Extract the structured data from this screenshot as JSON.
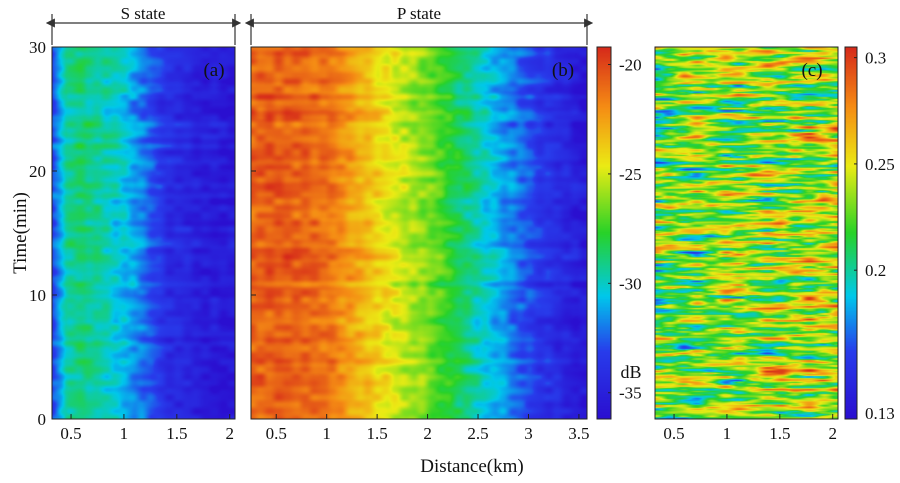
{
  "figure": {
    "ylabel": "Time(min)",
    "xlabel": "Distance(km)"
  },
  "chart_data": [
    {
      "type": "heatmap",
      "panel_label": "(a)",
      "header": "S state",
      "x_ticks": [
        "0.5",
        "1",
        "1.5",
        "2"
      ],
      "y_ticks": [
        "0",
        "10",
        "20",
        "30"
      ],
      "xlim": [
        0.32,
        2.05
      ],
      "ylim": [
        0,
        30
      ],
      "colorbar": "b",
      "colors": {
        "low": "#2a0fd0",
        "high": "#d42a1a"
      },
      "profile_db": [
        {
          "x": 0.32,
          "v": -33
        },
        {
          "x": 0.45,
          "v": -29.5
        },
        {
          "x": 0.62,
          "v": -28.8
        },
        {
          "x": 0.85,
          "v": -29.8
        },
        {
          "x": 1.0,
          "v": -30.5
        },
        {
          "x": 1.2,
          "v": -32.2
        },
        {
          "x": 1.4,
          "v": -34
        },
        {
          "x": 1.7,
          "v": -35
        },
        {
          "x": 2.05,
          "v": -35.5
        }
      ]
    },
    {
      "type": "heatmap",
      "panel_label": "(b)",
      "header": "P state",
      "x_ticks": [
        "0.5",
        "1",
        "1.5",
        "2",
        "2.5",
        "3",
        "3.5"
      ],
      "y_ticks": [
        "0",
        "10",
        "20",
        "30"
      ],
      "xlim": [
        0.25,
        3.58
      ],
      "ylim": [
        0,
        30
      ],
      "colorbar": {
        "ticks": [
          "-20",
          "-25",
          "-30",
          "-35"
        ],
        "range": [
          -36.2,
          -19.2
        ],
        "unit": "dB"
      },
      "profile_db": [
        {
          "x": 0.25,
          "v": -20.8
        },
        {
          "x": 0.6,
          "v": -20.6
        },
        {
          "x": 1.0,
          "v": -21.2
        },
        {
          "x": 1.3,
          "v": -22.8
        },
        {
          "x": 1.6,
          "v": -24.5
        },
        {
          "x": 2.0,
          "v": -26.5
        },
        {
          "x": 2.3,
          "v": -28.5
        },
        {
          "x": 2.6,
          "v": -30.5
        },
        {
          "x": 3.0,
          "v": -33
        },
        {
          "x": 3.3,
          "v": -34.5
        },
        {
          "x": 3.58,
          "v": -35.5
        }
      ]
    },
    {
      "type": "heatmap",
      "panel_label": "(c)",
      "header": "",
      "x_ticks": [
        "0.5",
        "1",
        "1.5",
        "2"
      ],
      "y_ticks": [
        "0",
        "10",
        "20",
        "30"
      ],
      "xlim": [
        0.32,
        2.05
      ],
      "ylim": [
        0,
        30
      ],
      "colorbar": {
        "ticks": [
          "0.3",
          "0.25",
          "0.2",
          "0.13"
        ],
        "range": [
          0.13,
          0.305
        ]
      },
      "base_value": 0.22
    }
  ]
}
